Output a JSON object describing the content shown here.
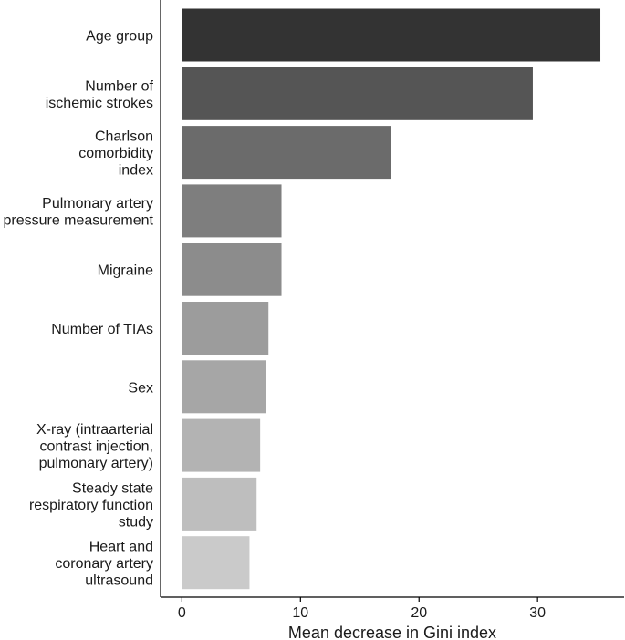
{
  "chart_data": {
    "type": "bar",
    "orientation": "horizontal",
    "categories": [
      "Age group",
      "Number of\nischemic strokes",
      "Charlson\ncomorbidity\nindex",
      "Pulmonary artery\npressure measurement",
      "Migraine",
      "Number of TIAs",
      "Sex",
      "X-ray (intraarterial\ncontrast injection,\npulmonary artery)",
      "Steady state\nrespiratory function\nstudy",
      "Heart and\ncoronary artery\nultrasound"
    ],
    "values": [
      35.3,
      29.6,
      17.6,
      8.4,
      8.4,
      7.3,
      7.1,
      6.6,
      6.3,
      5.7
    ],
    "bar_colors": [
      "#333333",
      "#555555",
      "#6b6b6b",
      "#7e7e7e",
      "#8c8c8c",
      "#9c9c9c",
      "#a6a6a6",
      "#b3b3b3",
      "#bebebe",
      "#cacaca"
    ],
    "title": "",
    "xlabel": "Mean decrease in Gini index",
    "ylabel": "",
    "xlim": [
      -1.8,
      37.3
    ],
    "xticks": [
      0,
      10,
      20,
      30
    ],
    "grid": false,
    "legend": "none"
  }
}
